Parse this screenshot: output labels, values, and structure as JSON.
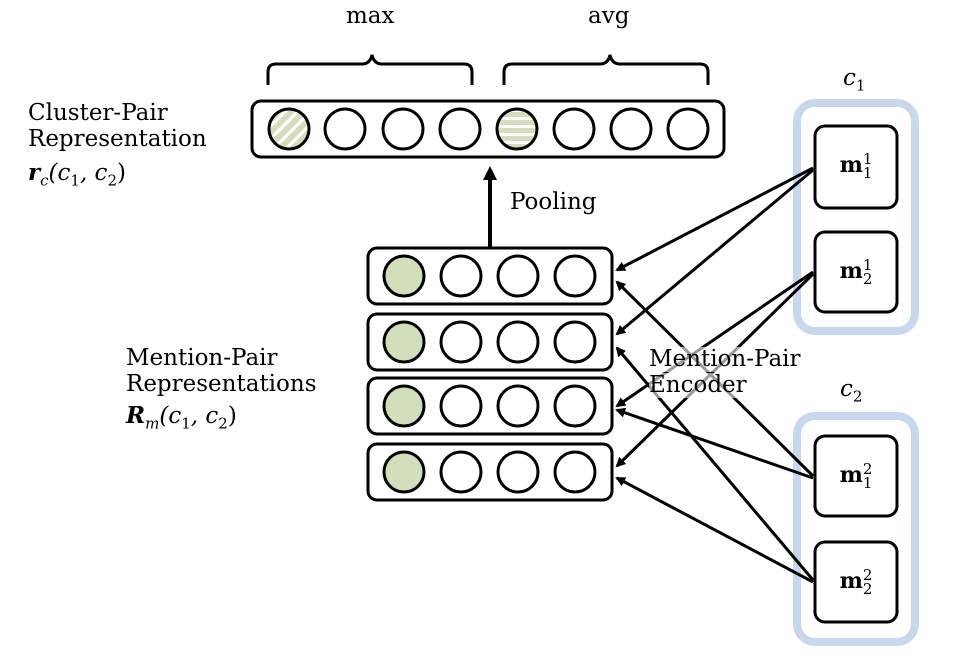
{
  "pooling": {
    "max_label": "max",
    "avg_label": "avg",
    "arrow_label": "Pooling"
  },
  "cluster_pair": {
    "line1": "Cluster-Pair",
    "line2": "Representation",
    "symbol": "r",
    "symbol_sub": "c",
    "args": "(c",
    "arg1_sub": "1",
    "mid": ", c",
    "arg2_sub": "2",
    "close": ")"
  },
  "mention_pair": {
    "line1": "Mention-Pair",
    "line2": "Representations",
    "symbol": "R",
    "symbol_sub": "m",
    "args": "(c",
    "arg1_sub": "1",
    "mid": ", c",
    "arg2_sub": "2",
    "close": ")"
  },
  "encoder": {
    "line1": "Mention-Pair",
    "line2": "Encoder"
  },
  "clusters": [
    {
      "name": "c",
      "sub": "1",
      "mentions": [
        {
          "base": "m",
          "sub": "1",
          "sup": "1"
        },
        {
          "base": "m",
          "sub": "2",
          "sup": "1"
        }
      ]
    },
    {
      "name": "c",
      "sub": "2",
      "mentions": [
        {
          "base": "m",
          "sub": "1",
          "sup": "2"
        },
        {
          "base": "m",
          "sub": "2",
          "sup": "2"
        }
      ]
    }
  ],
  "colors": {
    "fill_green": "#d3dfba",
    "cluster_glow": "#c9d7ee",
    "stroke": "#000000"
  }
}
